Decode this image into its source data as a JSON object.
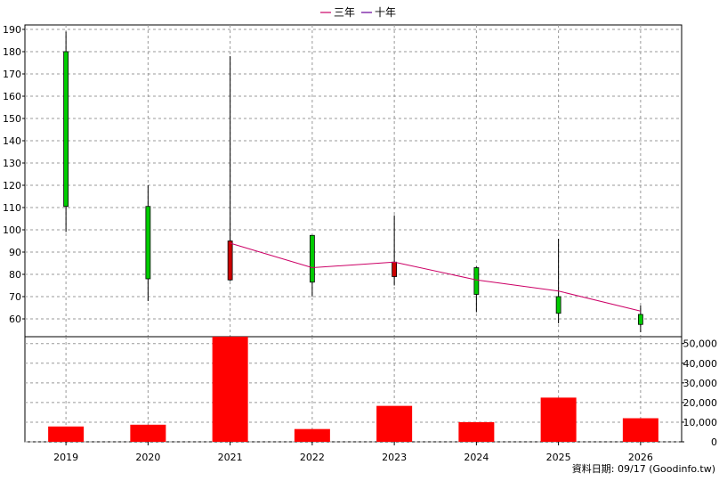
{
  "legend": [
    {
      "label": "三年",
      "color": "#cc0066"
    },
    {
      "label": "十年",
      "color": "#660099"
    }
  ],
  "footer": "資料日期: 09/17 (Goodinfo.tw)",
  "chart_data": [
    {
      "type": "candlestick",
      "categories": [
        "2019",
        "2020",
        "2021",
        "2022",
        "2023",
        "2024",
        "2025",
        "2026"
      ],
      "ylim": [
        52,
        192
      ],
      "yticks": [
        60,
        70,
        80,
        90,
        100,
        110,
        120,
        130,
        140,
        150,
        160,
        170,
        180,
        190
      ],
      "grid": true,
      "legend_position": "top-center",
      "candles": [
        {
          "open": 110.5,
          "high": 189,
          "low": 99,
          "close": 180,
          "color": "#00cc00"
        },
        {
          "open": 78,
          "high": 120,
          "low": 68,
          "close": 110.5,
          "color": "#00cc00"
        },
        {
          "open": 95,
          "high": 178,
          "low": 77,
          "close": 77.5,
          "color": "#cc0000"
        },
        {
          "open": 76.5,
          "high": 97.5,
          "low": 70,
          "close": 97.5,
          "color": "#00cc00"
        },
        {
          "open": 85.5,
          "high": 106.5,
          "low": 75,
          "close": 79,
          "color": "#cc0000"
        },
        {
          "open": 71,
          "high": 83.5,
          "low": 63,
          "close": 83,
          "color": "#00cc00"
        },
        {
          "open": 62.5,
          "high": 96,
          "low": 58,
          "close": 70,
          "color": "#00cc00"
        },
        {
          "open": 57.5,
          "high": 66,
          "low": 54,
          "close": 62,
          "color": "#00cc00"
        }
      ],
      "series": [
        {
          "name": "三年",
          "color": "#cc0066",
          "values": [
            null,
            null,
            94,
            83,
            85.5,
            77.5,
            72.5,
            63.5
          ]
        }
      ]
    },
    {
      "type": "bar",
      "categories": [
        "2019",
        "2020",
        "2021",
        "2022",
        "2023",
        "2024",
        "2025",
        "2026"
      ],
      "values": [
        7800,
        8700,
        53500,
        6500,
        18300,
        10000,
        22500,
        12000
      ],
      "ylim": [
        0,
        53500
      ],
      "yticks": [
        0,
        10000,
        20000,
        30000,
        40000,
        50000
      ],
      "ytick_labels": [
        "0",
        "10,000",
        "20,000",
        "30,000",
        "40,000",
        "50,000"
      ],
      "color": "#ff0000",
      "grid": true
    }
  ]
}
